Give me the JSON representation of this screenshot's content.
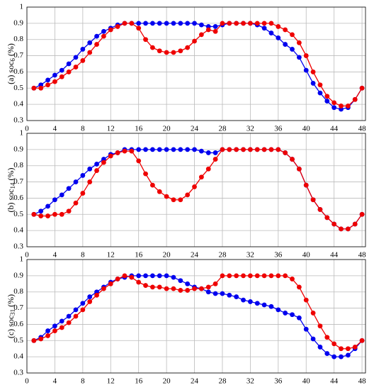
{
  "chart_data": [
    {
      "type": "line",
      "ylabel": {
        "prefix": "(a) soc",
        "sub": "6",
        "suffix": " (%)"
      },
      "x": [
        1,
        2,
        3,
        4,
        5,
        6,
        7,
        8,
        9,
        10,
        11,
        12,
        13,
        14,
        15,
        16,
        17,
        18,
        19,
        20,
        21,
        22,
        23,
        24,
        25,
        26,
        27,
        28,
        29,
        30,
        31,
        32,
        33,
        34,
        35,
        36,
        37,
        38,
        39,
        40,
        41,
        42,
        43,
        44,
        45,
        46,
        47,
        48
      ],
      "series": [
        {
          "color": "#0000ee",
          "values": [
            0.5,
            0.52,
            0.55,
            0.58,
            0.61,
            0.65,
            0.69,
            0.74,
            0.78,
            0.82,
            0.85,
            0.87,
            0.89,
            0.9,
            0.9,
            0.9,
            0.9,
            0.9,
            0.9,
            0.9,
            0.9,
            0.9,
            0.9,
            0.9,
            0.89,
            0.88,
            0.88,
            0.89,
            0.9,
            0.9,
            0.9,
            0.9,
            0.89,
            0.87,
            0.84,
            0.81,
            0.77,
            0.74,
            0.69,
            0.61,
            0.53,
            0.47,
            0.42,
            0.38,
            0.37,
            0.38,
            0.43,
            0.5
          ]
        },
        {
          "color": "#ee0000",
          "values": [
            0.5,
            0.5,
            0.52,
            0.54,
            0.57,
            0.6,
            0.63,
            0.67,
            0.72,
            0.77,
            0.82,
            0.86,
            0.88,
            0.9,
            0.9,
            0.87,
            0.8,
            0.75,
            0.73,
            0.72,
            0.72,
            0.73,
            0.75,
            0.79,
            0.83,
            0.86,
            0.85,
            0.9,
            0.9,
            0.9,
            0.9,
            0.9,
            0.9,
            0.9,
            0.9,
            0.88,
            0.86,
            0.83,
            0.78,
            0.7,
            0.6,
            0.52,
            0.45,
            0.41,
            0.39,
            0.39,
            0.43,
            0.5
          ]
        }
      ],
      "xlim": [
        0,
        48.5
      ],
      "xticks": [
        0,
        4,
        8,
        12,
        16,
        20,
        24,
        28,
        32,
        36,
        40,
        44,
        48
      ],
      "ylim": [
        0.3,
        1
      ],
      "yticks": [
        0.3,
        0.4,
        0.5,
        0.6,
        0.7,
        0.8,
        0.9,
        1
      ],
      "grid": true
    },
    {
      "type": "line",
      "ylabel": {
        "prefix": "(b) soc",
        "sub": "14",
        "suffix": " (%)"
      },
      "x": [
        1,
        2,
        3,
        4,
        5,
        6,
        7,
        8,
        9,
        10,
        11,
        12,
        13,
        14,
        15,
        16,
        17,
        18,
        19,
        20,
        21,
        22,
        23,
        24,
        25,
        26,
        27,
        28,
        29,
        30,
        31,
        32,
        33,
        34,
        35,
        36,
        37,
        38,
        39,
        40,
        41,
        42,
        43,
        44,
        45,
        46,
        47,
        48
      ],
      "series": [
        {
          "color": "#0000ee",
          "values": [
            0.5,
            0.52,
            0.55,
            0.59,
            0.62,
            0.66,
            0.7,
            0.74,
            0.78,
            0.81,
            0.84,
            0.87,
            0.88,
            0.9,
            0.9,
            0.9,
            0.9,
            0.9,
            0.9,
            0.9,
            0.9,
            0.9,
            0.9,
            0.9,
            0.89,
            0.88,
            0.88,
            0.9,
            0.9,
            0.9,
            0.9,
            0.9,
            0.9,
            0.9,
            0.9,
            0.9,
            0.88,
            0.84,
            0.78,
            0.68,
            0.59,
            0.53,
            0.48,
            0.44,
            0.41,
            0.41,
            0.44,
            0.5
          ]
        },
        {
          "color": "#ee0000",
          "values": [
            0.5,
            0.49,
            0.49,
            0.5,
            0.5,
            0.52,
            0.57,
            0.63,
            0.7,
            0.77,
            0.82,
            0.86,
            0.88,
            0.89,
            0.89,
            0.83,
            0.75,
            0.68,
            0.64,
            0.61,
            0.59,
            0.59,
            0.62,
            0.67,
            0.73,
            0.78,
            0.84,
            0.9,
            0.9,
            0.9,
            0.9,
            0.9,
            0.9,
            0.9,
            0.9,
            0.9,
            0.88,
            0.84,
            0.78,
            0.68,
            0.59,
            0.53,
            0.48,
            0.44,
            0.41,
            0.41,
            0.44,
            0.5
          ]
        }
      ],
      "xlim": [
        0,
        48.5
      ],
      "xticks": [
        0,
        4,
        8,
        12,
        16,
        20,
        24,
        28,
        32,
        36,
        40,
        44,
        48
      ],
      "ylim": [
        0.3,
        1
      ],
      "yticks": [
        0.3,
        0.4,
        0.5,
        0.6,
        0.7,
        0.8,
        0.9,
        1
      ],
      "grid": true
    },
    {
      "type": "line",
      "ylabel": {
        "prefix": "(c) soc",
        "sub": "31",
        "suffix": " (%)"
      },
      "x": [
        1,
        2,
        3,
        4,
        5,
        6,
        7,
        8,
        9,
        10,
        11,
        12,
        13,
        14,
        15,
        16,
        17,
        18,
        19,
        20,
        21,
        22,
        23,
        24,
        25,
        26,
        27,
        28,
        29,
        30,
        31,
        32,
        33,
        34,
        35,
        36,
        37,
        38,
        39,
        40,
        41,
        42,
        43,
        44,
        45,
        46,
        47,
        48
      ],
      "series": [
        {
          "color": "#0000ee",
          "values": [
            0.5,
            0.52,
            0.56,
            0.59,
            0.62,
            0.65,
            0.69,
            0.73,
            0.77,
            0.8,
            0.83,
            0.86,
            0.88,
            0.89,
            0.9,
            0.9,
            0.9,
            0.9,
            0.9,
            0.9,
            0.89,
            0.87,
            0.85,
            0.83,
            0.82,
            0.8,
            0.79,
            0.79,
            0.78,
            0.77,
            0.75,
            0.74,
            0.73,
            0.72,
            0.71,
            0.69,
            0.67,
            0.66,
            0.64,
            0.57,
            0.51,
            0.46,
            0.42,
            0.4,
            0.4,
            0.41,
            0.45,
            0.5
          ]
        },
        {
          "color": "#ee0000",
          "values": [
            0.5,
            0.51,
            0.53,
            0.56,
            0.58,
            0.61,
            0.65,
            0.69,
            0.74,
            0.78,
            0.82,
            0.85,
            0.88,
            0.9,
            0.89,
            0.86,
            0.84,
            0.83,
            0.83,
            0.82,
            0.82,
            0.81,
            0.81,
            0.82,
            0.82,
            0.83,
            0.85,
            0.9,
            0.9,
            0.9,
            0.9,
            0.9,
            0.9,
            0.9,
            0.9,
            0.9,
            0.9,
            0.88,
            0.83,
            0.75,
            0.67,
            0.59,
            0.52,
            0.48,
            0.45,
            0.45,
            0.46,
            0.5
          ]
        }
      ],
      "xlim": [
        0,
        48.5
      ],
      "xticks": [
        0,
        4,
        8,
        12,
        16,
        20,
        24,
        28,
        32,
        36,
        40,
        44,
        48
      ],
      "ylim": [
        0.3,
        1
      ],
      "yticks": [
        0.3,
        0.4,
        0.5,
        0.6,
        0.7,
        0.8,
        0.9,
        1
      ],
      "grid": true
    }
  ]
}
